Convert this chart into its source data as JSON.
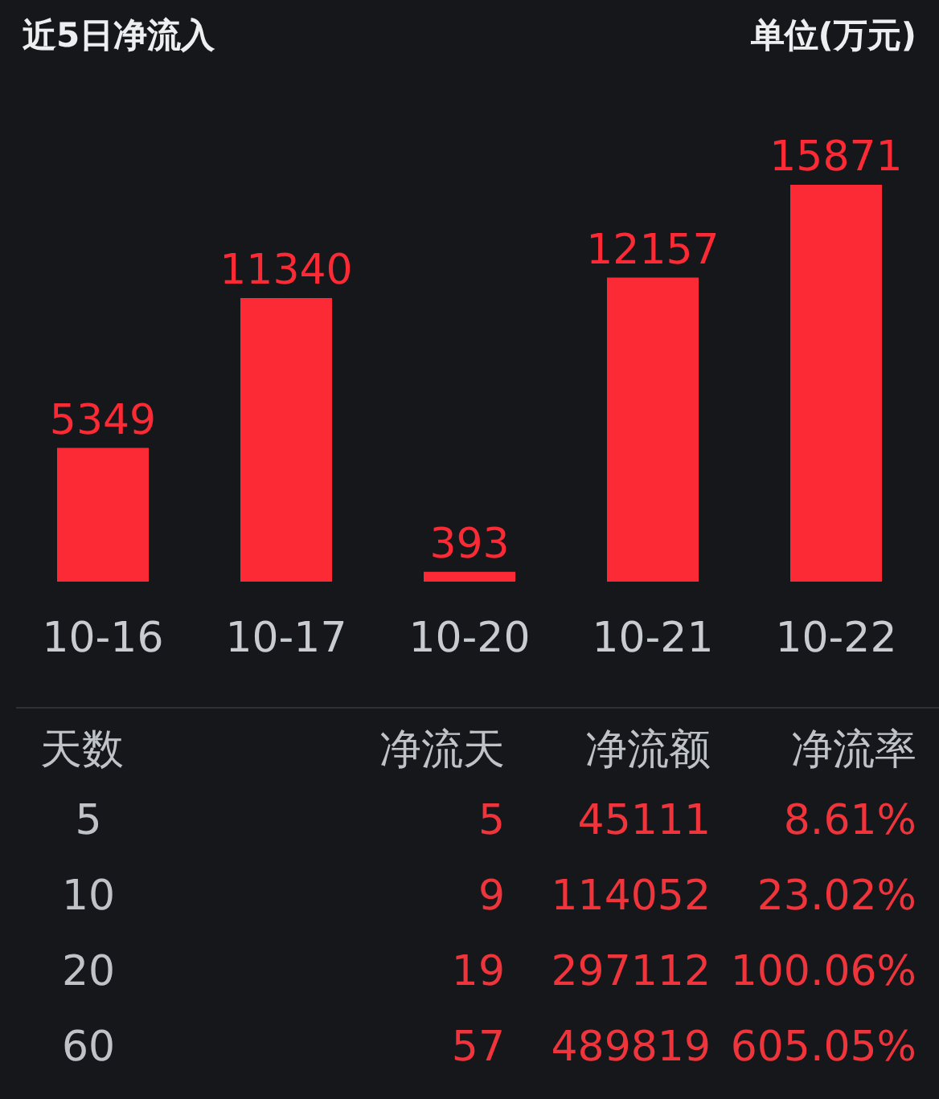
{
  "chart_data": [
    {
      "type": "bar",
      "title": "近5日净流入",
      "ylabel": "单位(万元)",
      "categories": [
        "10-16",
        "10-17",
        "10-20",
        "10-21",
        "10-22"
      ],
      "values": [
        5349,
        11340,
        393,
        12157,
        15871
      ],
      "color": "#fc2a34",
      "data_labels": true
    },
    {
      "type": "other",
      "categories": [
        "天数",
        "净流天",
        "净流额",
        "净流率"
      ],
      "colors": [
        "#bfc3c8",
        "#f0343c",
        "#f0343c",
        "#f0343c"
      ],
      "cell_labels": [
        [
          "5",
          "5",
          "45111",
          "8.61%"
        ],
        [
          "10",
          "9",
          "114052",
          "23.02%"
        ],
        [
          "20",
          "19",
          "297112",
          "100.06%"
        ],
        [
          "60",
          "57",
          "489819",
          "605.05%"
        ]
      ]
    }
  ]
}
